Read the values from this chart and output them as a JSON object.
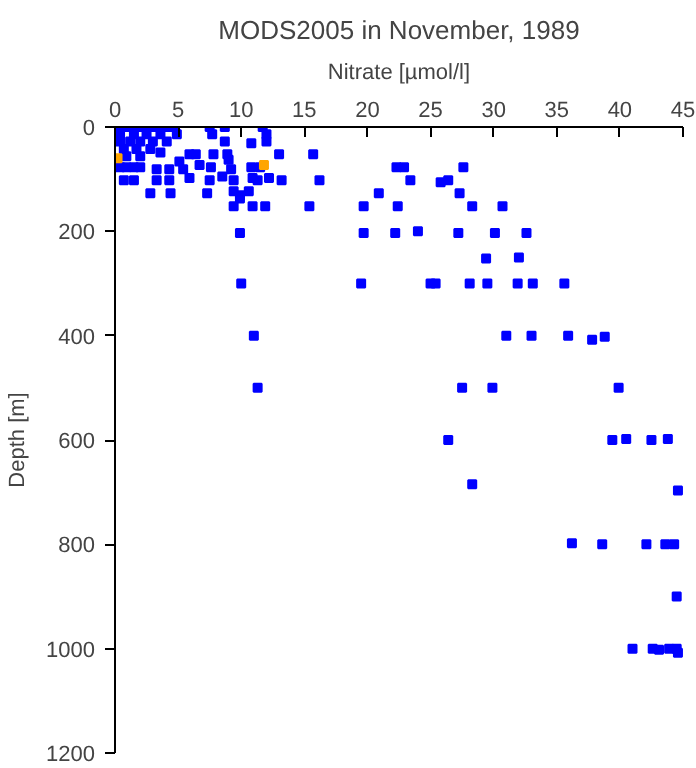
{
  "chart_data": {
    "type": "scatter",
    "title": "MODS2005 in November, 1989",
    "xlabel": "Nitrate [µmol/l]",
    "ylabel": "Depth [m]",
    "xlim": [
      0,
      45
    ],
    "xticks": [
      0,
      5,
      10,
      15,
      20,
      25,
      30,
      35,
      40,
      45
    ],
    "ylim": [
      1200,
      0
    ],
    "yticks": [
      0,
      200,
      400,
      600,
      800,
      1000,
      1200
    ],
    "grid": false,
    "marker": "square",
    "series": [
      {
        "color": "#0000ff",
        "x": [
          0.4,
          0.9,
          1.5,
          2.0,
          2.5,
          3.0,
          3.6,
          4.1,
          4.6,
          0.4,
          1.5,
          2.5,
          3.6,
          4.9,
          0.4,
          1.2,
          2.0,
          3.0,
          4.1,
          0.7,
          1.7,
          2.8,
          3.6,
          0.9,
          2.0,
          0.4,
          0.9,
          1.5,
          2.0,
          7.5,
          7.7,
          8.7,
          8.7,
          10.8,
          11.7,
          12.0,
          12.0,
          13.0,
          15.7,
          5.9,
          6.4,
          7.8,
          8.9,
          5.1,
          6.7,
          7.6,
          9.2,
          10.8,
          11.5,
          5.4,
          4.3,
          3.3,
          9.0,
          0.7,
          1.5,
          3.3,
          4.3,
          5.9,
          7.5,
          8.5,
          9.4,
          10.9,
          11.3,
          12.2,
          13.2,
          16.2,
          2.8,
          4.4,
          7.3,
          9.4,
          9.9,
          10.6,
          9.9,
          9.4,
          10.9,
          11.9,
          15.4,
          9.9,
          10.0,
          11.0,
          11.3,
          26.4,
          28.3,
          27.5,
          29.9,
          31.0,
          33.0,
          35.9,
          37.8,
          38.8,
          39.9,
          39.4,
          40.5,
          42.5,
          43.8,
          44.6,
          36.2,
          38.6,
          42.1,
          43.6,
          44.3,
          44.5,
          41.0,
          42.6,
          43.1,
          43.9,
          44.5,
          44.6,
          22.3,
          22.9,
          27.6,
          23.4,
          25.8,
          26.4,
          20.9,
          27.3,
          19.7,
          22.4,
          28.3,
          30.7,
          19.7,
          22.2,
          24.0,
          27.2,
          30.1,
          32.6,
          29.4,
          32.0,
          19.5,
          25.0,
          25.4,
          28.1,
          29.5,
          31.9,
          33.1,
          35.6
        ],
        "values": [
          0,
          0,
          0,
          0,
          0,
          0,
          0,
          0,
          0,
          14,
          14,
          14,
          14,
          14,
          28,
          28,
          28,
          28,
          28,
          42,
          42,
          42,
          49,
          56,
          56,
          77,
          77,
          77,
          77,
          0,
          14,
          0,
          28,
          31,
          0,
          14,
          28,
          52,
          52,
          52,
          52,
          52,
          52,
          66,
          73,
          77,
          81,
          77,
          77,
          81,
          81,
          81,
          63,
          102,
          102,
          102,
          102,
          98,
          102,
          95,
          102,
          98,
          102,
          98,
          102,
          102,
          127,
          127,
          127,
          123,
          131,
          123,
          137,
          152,
          152,
          152,
          152,
          203,
          300,
          400,
          500,
          600,
          685,
          500,
          500,
          400,
          400,
          400,
          408,
          402,
          500,
          600,
          598,
          600,
          598,
          697,
          798,
          800,
          800,
          800,
          800,
          900,
          1000,
          1000,
          1002,
          1000,
          1000,
          1008,
          77,
          77,
          77,
          102,
          106,
          102,
          127,
          127,
          152,
          152,
          152,
          152,
          203,
          203,
          200,
          203,
          203,
          203,
          252,
          250,
          300,
          300,
          300,
          300,
          300,
          300,
          300,
          300
        ]
      },
      {
        "color": "#ffa500",
        "x": [
          0.2,
          11.8
        ],
        "values": [
          60,
          73
        ]
      }
    ]
  }
}
